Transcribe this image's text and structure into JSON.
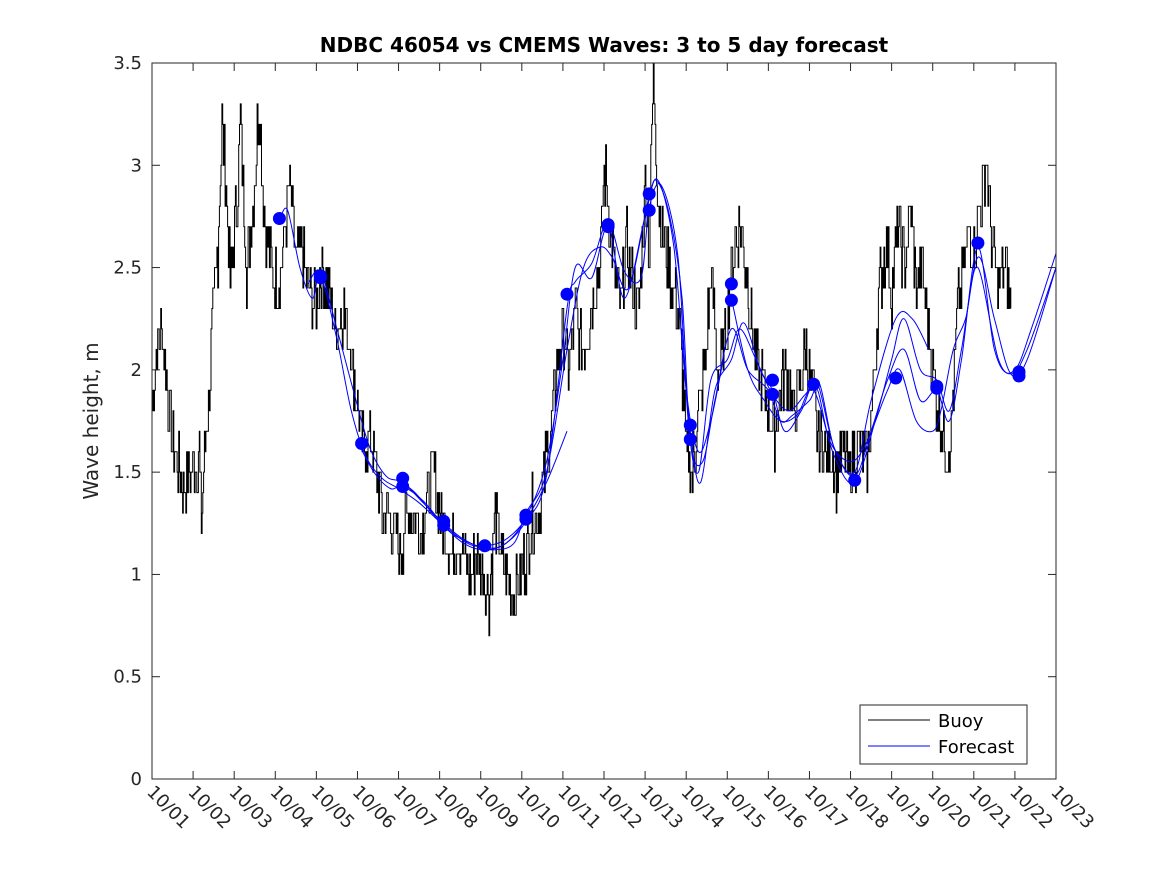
{
  "chart_data": {
    "type": "line",
    "title": "NDBC 46054 vs CMEMS Waves: 3 to 5 day forecast",
    "xlabel": "",
    "ylabel": "Wave height, m",
    "xlim": [
      0,
      22
    ],
    "ylim": [
      0,
      3.5
    ],
    "x_tick_values": [
      0,
      1,
      2,
      3,
      4,
      5,
      6,
      7,
      8,
      9,
      10,
      11,
      12,
      13,
      14,
      15,
      16,
      17,
      18,
      19,
      20,
      21,
      22
    ],
    "x_tick_labels": [
      "10/01",
      "10/02",
      "10/03",
      "10/04",
      "10/05",
      "10/06",
      "10/07",
      "10/08",
      "10/09",
      "10/10",
      "10/11",
      "10/12",
      "10/13",
      "10/14",
      "10/15",
      "10/16",
      "10/17",
      "10/18",
      "10/19",
      "10/20",
      "10/21",
      "10/22",
      "10/23"
    ],
    "y_tick_values": [
      0,
      0.5,
      1,
      1.5,
      2,
      2.5,
      3,
      3.5
    ],
    "y_tick_labels": [
      "0",
      "0.5",
      "1",
      "1.5",
      "2",
      "2.5",
      "3",
      "3.5"
    ],
    "legend": {
      "placement": "bottom-right",
      "entries": [
        "Buoy",
        "Forecast"
      ]
    },
    "colors": {
      "buoy": "#000000",
      "forecast": "#0000ff",
      "axes": "#262626"
    },
    "buoy_key_points": [
      [
        0.0,
        1.8
      ],
      [
        0.1,
        2.1
      ],
      [
        0.25,
        2.2
      ],
      [
        0.45,
        1.7
      ],
      [
        0.65,
        1.5
      ],
      [
        0.8,
        1.4
      ],
      [
        0.95,
        1.5
      ],
      [
        1.15,
        1.6
      ],
      [
        1.2,
        1.3
      ],
      [
        1.35,
        1.8
      ],
      [
        1.5,
        2.3
      ],
      [
        1.6,
        2.6
      ],
      [
        1.7,
        3.2
      ],
      [
        1.8,
        2.9
      ],
      [
        1.9,
        2.4
      ],
      [
        2.05,
        2.8
      ],
      [
        2.15,
        3.2
      ],
      [
        2.3,
        2.5
      ],
      [
        2.45,
        2.8
      ],
      [
        2.6,
        3.3
      ],
      [
        2.75,
        2.7
      ],
      [
        2.9,
        2.5
      ],
      [
        3.05,
        2.4
      ],
      [
        3.2,
        2.6
      ],
      [
        3.35,
        2.9
      ],
      [
        3.5,
        2.5
      ],
      [
        3.65,
        2.6
      ],
      [
        3.8,
        2.4
      ],
      [
        3.95,
        2.3
      ],
      [
        4.1,
        2.5
      ],
      [
        4.25,
        2.4
      ],
      [
        4.45,
        2.2
      ],
      [
        4.65,
        2.3
      ],
      [
        4.85,
        2.1
      ],
      [
        5.0,
        1.8
      ],
      [
        5.15,
        1.6
      ],
      [
        5.3,
        1.7
      ],
      [
        5.45,
        1.5
      ],
      [
        5.6,
        1.3
      ],
      [
        5.75,
        1.3
      ],
      [
        5.9,
        1.2
      ],
      [
        6.05,
        1.1
      ],
      [
        6.2,
        1.3
      ],
      [
        6.4,
        1.3
      ],
      [
        6.55,
        1.2
      ],
      [
        6.7,
        1.4
      ],
      [
        6.85,
        1.5
      ],
      [
        7.0,
        1.3
      ],
      [
        7.15,
        1.2
      ],
      [
        7.3,
        1.1
      ],
      [
        7.45,
        1.2
      ],
      [
        7.6,
        1.1
      ],
      [
        7.75,
        1.0
      ],
      [
        7.9,
        1.1
      ],
      [
        8.05,
        1.0
      ],
      [
        8.2,
        0.9
      ],
      [
        8.35,
        1.3
      ],
      [
        8.5,
        1.1
      ],
      [
        8.65,
        1.0
      ],
      [
        8.8,
        0.9
      ],
      [
        8.95,
        1.0
      ],
      [
        9.1,
        1.1
      ],
      [
        9.25,
        1.3
      ],
      [
        9.4,
        1.3
      ],
      [
        9.55,
        1.5
      ],
      [
        9.7,
        1.7
      ],
      [
        9.85,
        2.0
      ],
      [
        10.0,
        2.2
      ],
      [
        10.15,
        2.0
      ],
      [
        10.3,
        2.3
      ],
      [
        10.45,
        2.1
      ],
      [
        10.6,
        2.2
      ],
      [
        10.75,
        2.4
      ],
      [
        10.9,
        2.5
      ],
      [
        11.0,
        3.0
      ],
      [
        11.1,
        2.8
      ],
      [
        11.25,
        2.5
      ],
      [
        11.4,
        2.3
      ],
      [
        11.55,
        2.6
      ],
      [
        11.7,
        2.4
      ],
      [
        11.85,
        2.3
      ],
      [
        12.0,
        2.9
      ],
      [
        12.1,
        2.6
      ],
      [
        12.2,
        3.5
      ],
      [
        12.3,
        2.9
      ],
      [
        12.4,
        2.7
      ],
      [
        12.55,
        2.5
      ],
      [
        12.7,
        2.4
      ],
      [
        12.85,
        2.2
      ],
      [
        13.0,
        1.6
      ],
      [
        13.15,
        1.5
      ],
      [
        13.3,
        1.8
      ],
      [
        13.45,
        2.0
      ],
      [
        13.6,
        2.5
      ],
      [
        13.75,
        2.0
      ],
      [
        13.9,
        2.1
      ],
      [
        14.0,
        2.3
      ],
      [
        14.15,
        2.6
      ],
      [
        14.3,
        2.7
      ],
      [
        14.45,
        2.5
      ],
      [
        14.6,
        2.2
      ],
      [
        14.75,
        2.0
      ],
      [
        14.9,
        1.9
      ],
      [
        15.0,
        1.8
      ],
      [
        15.15,
        1.7
      ],
      [
        15.3,
        1.9
      ],
      [
        15.45,
        2.0
      ],
      [
        15.6,
        1.8
      ],
      [
        15.75,
        1.9
      ],
      [
        15.9,
        2.1
      ],
      [
        16.05,
        1.9
      ],
      [
        16.2,
        1.7
      ],
      [
        16.35,
        1.6
      ],
      [
        16.5,
        1.6
      ],
      [
        16.65,
        1.5
      ],
      [
        16.8,
        1.6
      ],
      [
        16.95,
        1.5
      ],
      [
        17.1,
        1.6
      ],
      [
        17.25,
        1.6
      ],
      [
        17.4,
        1.5
      ],
      [
        17.55,
        1.9
      ],
      [
        17.7,
        2.4
      ],
      [
        17.85,
        2.6
      ],
      [
        18.0,
        2.4
      ],
      [
        18.15,
        2.7
      ],
      [
        18.3,
        2.5
      ],
      [
        18.45,
        2.8
      ],
      [
        18.6,
        2.4
      ],
      [
        18.75,
        2.5
      ],
      [
        18.9,
        2.2
      ],
      [
        19.0,
        2.0
      ],
      [
        19.15,
        1.8
      ],
      [
        19.3,
        1.6
      ],
      [
        19.45,
        1.7
      ],
      [
        19.6,
        2.3
      ],
      [
        19.75,
        2.5
      ],
      [
        19.9,
        2.7
      ],
      [
        20.0,
        2.6
      ],
      [
        20.15,
        2.8
      ],
      [
        20.3,
        3.0
      ],
      [
        20.45,
        2.6
      ],
      [
        20.6,
        2.4
      ],
      [
        20.75,
        2.5
      ],
      [
        20.9,
        2.3
      ]
    ],
    "forecast_series": [
      {
        "name": "forecast-run-1",
        "points": [
          [
            3.1,
            2.73
          ],
          [
            3.3,
            2.78
          ],
          [
            3.6,
            2.5
          ],
          [
            3.9,
            2.35
          ],
          [
            4.1,
            2.46
          ],
          [
            4.5,
            2.15
          ],
          [
            4.85,
            1.8
          ],
          [
            5.2,
            1.58
          ],
          [
            5.6,
            1.47
          ],
          [
            6.0,
            1.42
          ],
          [
            6.5,
            1.35
          ],
          [
            7.1,
            1.24
          ],
          [
            7.7,
            1.15
          ],
          [
            8.1,
            1.14
          ],
          [
            8.6,
            1.17
          ],
          [
            9.1,
            1.27
          ],
          [
            9.6,
            1.45
          ],
          [
            10.1,
            1.7
          ]
        ]
      },
      {
        "name": "forecast-run-2",
        "points": [
          [
            3.8,
            2.42
          ],
          [
            4.1,
            2.48
          ],
          [
            4.5,
            2.2
          ],
          [
            4.9,
            1.9
          ],
          [
            5.3,
            1.62
          ],
          [
            5.7,
            1.48
          ],
          [
            6.1,
            1.45
          ],
          [
            6.6,
            1.35
          ],
          [
            7.1,
            1.25
          ],
          [
            7.6,
            1.17
          ],
          [
            8.1,
            1.13
          ],
          [
            8.6,
            1.15
          ],
          [
            9.1,
            1.28
          ],
          [
            9.6,
            1.55
          ],
          [
            10.0,
            2.05
          ],
          [
            10.3,
            2.5
          ],
          [
            10.7,
            2.45
          ],
          [
            11.1,
            2.7
          ],
          [
            11.5,
            2.35
          ],
          [
            12.0,
            2.75
          ],
          [
            12.3,
            2.93
          ],
          [
            12.7,
            2.6
          ],
          [
            13.0,
            1.9
          ],
          [
            13.3,
            1.6
          ],
          [
            13.6,
            1.75
          ],
          [
            13.9,
            2.05
          ]
        ]
      },
      {
        "name": "forecast-run-3",
        "points": [
          [
            5.0,
            1.65
          ],
          [
            5.4,
            1.5
          ],
          [
            5.8,
            1.42
          ],
          [
            6.1,
            1.43
          ],
          [
            6.6,
            1.36
          ],
          [
            7.1,
            1.24
          ],
          [
            7.6,
            1.15
          ],
          [
            8.1,
            1.12
          ],
          [
            8.6,
            1.15
          ],
          [
            9.1,
            1.26
          ],
          [
            9.6,
            1.48
          ],
          [
            10.1,
            2.3
          ],
          [
            10.3,
            2.43
          ],
          [
            10.7,
            2.52
          ],
          [
            11.1,
            2.72
          ],
          [
            11.5,
            2.48
          ],
          [
            11.9,
            2.45
          ],
          [
            12.1,
            2.79
          ],
          [
            12.4,
            2.9
          ],
          [
            12.8,
            2.55
          ],
          [
            13.05,
            1.75
          ],
          [
            13.3,
            1.5
          ],
          [
            13.6,
            1.95
          ],
          [
            14.0,
            2.05
          ],
          [
            14.3,
            2.2
          ],
          [
            14.7,
            2.05
          ],
          [
            15.1,
            1.88
          ],
          [
            15.5,
            1.8
          ],
          [
            15.9,
            1.88
          ],
          [
            16.2,
            1.93
          ],
          [
            16.6,
            1.62
          ],
          [
            17.1,
            1.5
          ],
          [
            17.5,
            1.85
          ],
          [
            18.1,
            2.25
          ],
          [
            18.5,
            2.25
          ],
          [
            18.9,
            2.1
          ]
        ]
      },
      {
        "name": "forecast-run-4",
        "points": [
          [
            6.0,
            1.46
          ],
          [
            6.4,
            1.4
          ],
          [
            6.9,
            1.28
          ],
          [
            7.3,
            1.2
          ],
          [
            7.9,
            1.14
          ],
          [
            8.3,
            1.12
          ],
          [
            8.8,
            1.15
          ],
          [
            9.1,
            1.3
          ],
          [
            9.6,
            1.5
          ],
          [
            10.1,
            2.1
          ],
          [
            10.5,
            2.5
          ],
          [
            10.9,
            2.6
          ],
          [
            11.2,
            2.55
          ],
          [
            11.6,
            2.4
          ],
          [
            12.1,
            2.85
          ],
          [
            12.3,
            2.92
          ],
          [
            12.6,
            2.75
          ],
          [
            12.9,
            2.35
          ],
          [
            13.1,
            1.65
          ],
          [
            13.4,
            1.55
          ],
          [
            13.7,
            1.85
          ],
          [
            14.1,
            2.2
          ],
          [
            14.5,
            2.0
          ],
          [
            15.0,
            1.9
          ],
          [
            15.3,
            1.75
          ],
          [
            15.6,
            1.78
          ],
          [
            16.0,
            1.85
          ],
          [
            16.2,
            1.9
          ],
          [
            16.5,
            1.65
          ],
          [
            17.0,
            1.55
          ],
          [
            17.4,
            1.65
          ],
          [
            17.9,
            1.9
          ],
          [
            18.2,
            2.0
          ],
          [
            18.6,
            1.75
          ],
          [
            19.0,
            1.7
          ],
          [
            19.2,
            1.8
          ],
          [
            19.5,
            2.1
          ],
          [
            19.8,
            2.25
          ],
          [
            20.1,
            2.5
          ],
          [
            20.6,
            2.05
          ],
          [
            21.0,
            2.0
          ],
          [
            21.4,
            2.2
          ],
          [
            22.0,
            2.57
          ]
        ]
      },
      {
        "name": "forecast-run-5",
        "points": [
          [
            12.9,
            2.2
          ],
          [
            13.1,
            1.7
          ],
          [
            13.35,
            1.45
          ],
          [
            13.7,
            1.9
          ],
          [
            14.1,
            2.05
          ],
          [
            14.4,
            2.23
          ],
          [
            14.8,
            2.0
          ],
          [
            15.1,
            1.9
          ],
          [
            15.4,
            1.7
          ],
          [
            15.8,
            1.8
          ],
          [
            16.2,
            1.95
          ],
          [
            16.6,
            1.62
          ],
          [
            17.1,
            1.48
          ],
          [
            17.5,
            1.7
          ],
          [
            17.9,
            1.95
          ],
          [
            18.3,
            2.1
          ],
          [
            18.7,
            1.85
          ],
          [
            19.1,
            1.9
          ],
          [
            19.4,
            1.75
          ],
          [
            19.7,
            2.05
          ],
          [
            20.1,
            2.6
          ],
          [
            20.5,
            2.1
          ],
          [
            20.9,
            1.98
          ],
          [
            21.3,
            2.1
          ],
          [
            22.0,
            2.5
          ]
        ]
      },
      {
        "name": "forecast-run-6",
        "points": [
          [
            14.1,
            2.35
          ],
          [
            14.5,
            2.0
          ],
          [
            14.9,
            1.85
          ],
          [
            15.3,
            1.75
          ],
          [
            15.7,
            1.78
          ],
          [
            16.1,
            1.9
          ],
          [
            16.6,
            1.58
          ],
          [
            17.1,
            1.45
          ],
          [
            17.6,
            1.75
          ],
          [
            18.0,
            2.05
          ],
          [
            18.3,
            2.25
          ],
          [
            18.7,
            2.0
          ],
          [
            19.1,
            1.95
          ],
          [
            19.4,
            1.8
          ],
          [
            19.7,
            2.1
          ],
          [
            20.1,
            2.55
          ],
          [
            20.5,
            2.25
          ],
          [
            20.9,
            1.98
          ],
          [
            21.3,
            2.05
          ],
          [
            22.0,
            2.5
          ]
        ]
      }
    ],
    "forecast_markers": [
      [
        3.1,
        2.74
      ],
      [
        4.1,
        2.46
      ],
      [
        4.1,
        2.45
      ],
      [
        5.1,
        1.64
      ],
      [
        6.1,
        1.47
      ],
      [
        6.1,
        1.43
      ],
      [
        7.1,
        1.26
      ],
      [
        7.1,
        1.24
      ],
      [
        8.1,
        1.14
      ],
      [
        9.1,
        1.29
      ],
      [
        9.1,
        1.27
      ],
      [
        10.1,
        2.37
      ],
      [
        11.1,
        2.71
      ],
      [
        11.1,
        2.7
      ],
      [
        12.1,
        2.86
      ],
      [
        12.1,
        2.78
      ],
      [
        13.1,
        1.73
      ],
      [
        13.1,
        1.66
      ],
      [
        14.1,
        2.42
      ],
      [
        14.1,
        2.34
      ],
      [
        15.1,
        1.95
      ],
      [
        15.1,
        1.88
      ],
      [
        16.1,
        1.93
      ],
      [
        17.1,
        1.46
      ],
      [
        18.1,
        1.96
      ],
      [
        19.1,
        1.92
      ],
      [
        19.1,
        1.91
      ],
      [
        20.1,
        2.62
      ],
      [
        21.1,
        1.99
      ],
      [
        21.1,
        1.97
      ]
    ]
  }
}
